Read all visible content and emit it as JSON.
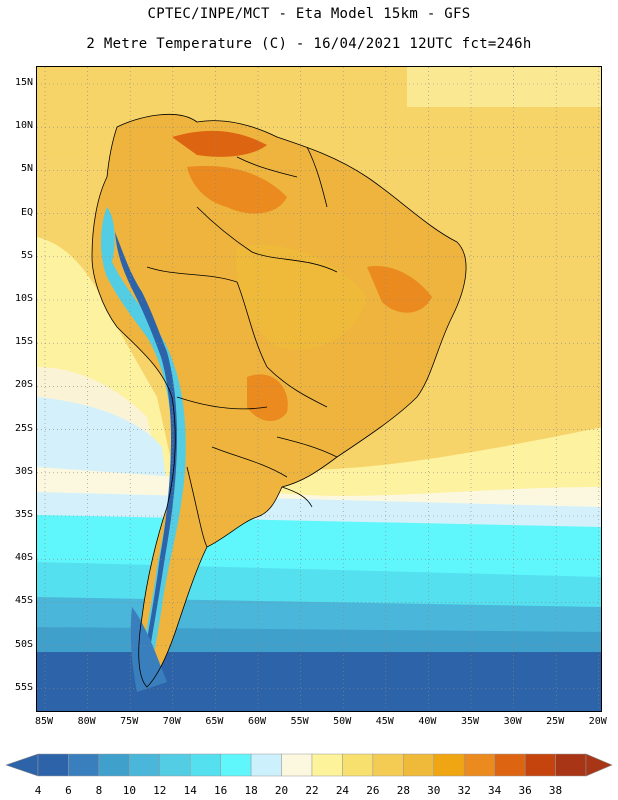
{
  "title": {
    "line1": "CPTEC/INPE/MCT -  Eta Model 15km - GFS",
    "line2": "2 Metre Temperature (C) - 16/04/2021 12UTC fct=246h"
  },
  "lat_labels": [
    "15N",
    "10N",
    "5N",
    "EQ",
    "5S",
    "10S",
    "15S",
    "20S",
    "25S",
    "30S",
    "35S",
    "40S",
    "45S",
    "50S",
    "55S"
  ],
  "lon_labels": [
    "85W",
    "80W",
    "75W",
    "70W",
    "65W",
    "60W",
    "55W",
    "50W",
    "45W",
    "40W",
    "35W",
    "30W",
    "25W",
    "20W"
  ],
  "colorbar": {
    "labels": [
      "4",
      "6",
      "8",
      "10",
      "12",
      "14",
      "16",
      "18",
      "20",
      "22",
      "24",
      "26",
      "28",
      "30",
      "32",
      "34",
      "36",
      "38"
    ],
    "colors": [
      "#2d63a8",
      "#3a7fbd",
      "#40a0cc",
      "#49b6da",
      "#52cde4",
      "#55e0ef",
      "#5ff7fb",
      "#cdf1fc",
      "#fcf8e0",
      "#fdf39a",
      "#f8e06e",
      "#f4cc53",
      "#efb93a",
      "#f0a612",
      "#ea8a1f",
      "#dd6410",
      "#c5430d",
      "#a83515"
    ]
  },
  "map": {
    "projection_lon_range": [
      -85,
      -20
    ],
    "projection_lat_range": [
      -58,
      17
    ]
  }
}
